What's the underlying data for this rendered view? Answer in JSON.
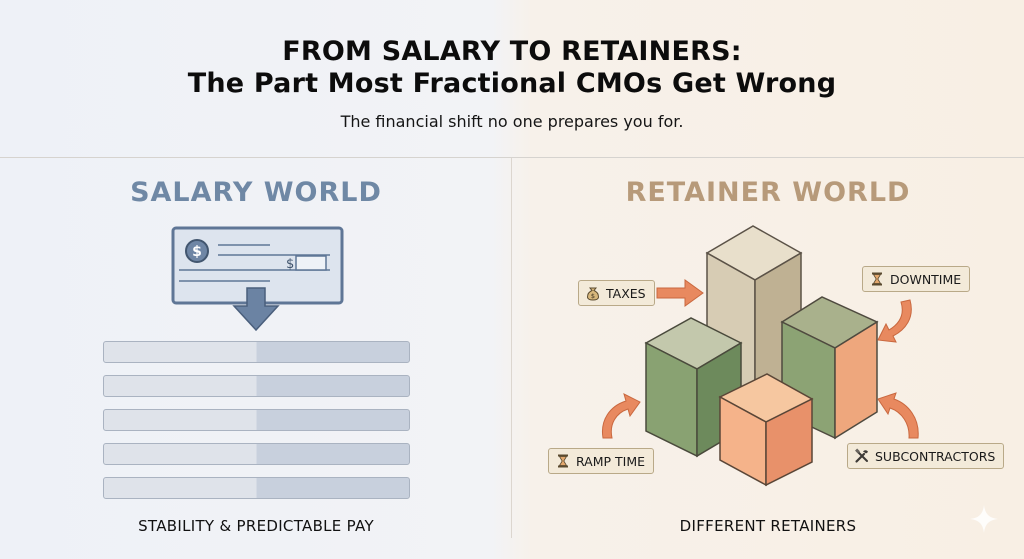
{
  "header": {
    "title_line1": "FROM SALARY TO RETAINERS:",
    "title_line2": "The Part Most Fractional CMOs Get Wrong",
    "subtitle": "The financial shift no one prepares you for."
  },
  "left_panel": {
    "title": "SALARY WORLD",
    "check_dollar_sign": "$",
    "check_amount_sign": "$",
    "bar_count": 5,
    "footer": "STABILITY & PREDICTABLE PAY",
    "colors": {
      "title": "#6f88a5",
      "check": "#5f7696",
      "bars": "#c8d0dd"
    }
  },
  "right_panel": {
    "title": "RETAINER WORLD",
    "footer": "DIFFERENT RETAINERS",
    "labels": {
      "taxes": "TAXES",
      "downtime": "DOWNTIME",
      "ramp_time": "RAMP TIME",
      "subcontractors": "SUBCONTRACTORS"
    },
    "label_icons": {
      "taxes": "money-bag-icon",
      "downtime": "hourglass-icon",
      "ramp_time": "hourglass-icon",
      "subcontractors": "tools-icon"
    },
    "colors": {
      "title": "#b79a7a",
      "arrow": "#e8895f",
      "beige_block": "#d7ccb4",
      "green_block": "#7f9a6a",
      "peach_block": "#f2a87c"
    }
  }
}
